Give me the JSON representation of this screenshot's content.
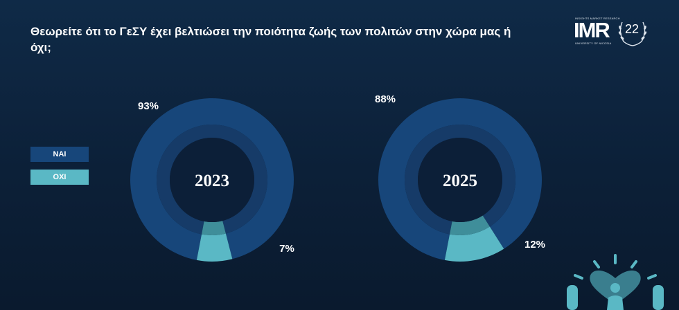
{
  "title": "Θεωρείτε ότι το ΓεΣΥ έχει βελτιώσει την ποιότητα ζωής των πολιτών στην χώρα μας ή όχι;",
  "logo": {
    "tagline": "INSIGHTS MARKET RESEARCH",
    "brand": "IMR",
    "university": "UNIVERSITY OF NICOSIA",
    "anniversary": "22"
  },
  "legend": {
    "yes": "ΝΑΙ",
    "no": "ΟΧΙ"
  },
  "colors": {
    "yes": "#17467a",
    "no": "#5ab8c5",
    "inner": "#0d2a4d"
  },
  "chart_data": [
    {
      "type": "pie",
      "year": "2023",
      "slices": [
        {
          "label": "ΝΑΙ",
          "value": 93,
          "display": "93%"
        },
        {
          "label": "ΟΧΙ",
          "value": 7,
          "display": "7%"
        }
      ]
    },
    {
      "type": "pie",
      "year": "2025",
      "slices": [
        {
          "label": "ΝΑΙ",
          "value": 88,
          "display": "88%"
        },
        {
          "label": "ΟΧΙ",
          "value": 12,
          "display": "12%"
        }
      ]
    }
  ]
}
